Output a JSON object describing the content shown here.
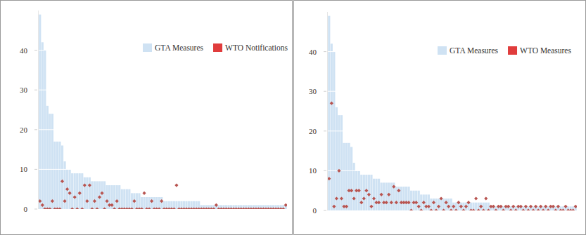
{
  "chart_data": [
    {
      "type": "bar",
      "categories": [
        null,
        null,
        null,
        null,
        null,
        null,
        null,
        null,
        null,
        null,
        null,
        null,
        null,
        null,
        null,
        null,
        null,
        null,
        null,
        null,
        null,
        null,
        null,
        null,
        null,
        null,
        null,
        null,
        null,
        null,
        null,
        null,
        null,
        null,
        null,
        null,
        null,
        null,
        null,
        null,
        null,
        null,
        null,
        null,
        null,
        null,
        null,
        null,
        null,
        null,
        null,
        null,
        null,
        null,
        null,
        null,
        null,
        null,
        null,
        null,
        null,
        null,
        null,
        null,
        null,
        null,
        null,
        null,
        null,
        null,
        null,
        null,
        null,
        null,
        null,
        null,
        null,
        null,
        null,
        null,
        null,
        null,
        null,
        null,
        null,
        null,
        null,
        null,
        null,
        null,
        null,
        null,
        null,
        null,
        null,
        null,
        null,
        null,
        null,
        null
      ],
      "series": [
        {
          "name": "GTA Measures",
          "type": "bar",
          "color": "#cfe2f3",
          "values": [
            49,
            42,
            40,
            26,
            24,
            24,
            17,
            17,
            17,
            16,
            12,
            10,
            10,
            9,
            9,
            9,
            9,
            9,
            8,
            8,
            8,
            7,
            7,
            7,
            7,
            7,
            7,
            6,
            6,
            6,
            6,
            6,
            6,
            5,
            5,
            5,
            5,
            4,
            4,
            4,
            4,
            3,
            3,
            3,
            3,
            3,
            3,
            3,
            3,
            3,
            2,
            2,
            2,
            2,
            2,
            2,
            2,
            2,
            2,
            2,
            2,
            2,
            2,
            2,
            2,
            1,
            1,
            1,
            1,
            1,
            1,
            1,
            1,
            1,
            1,
            1,
            1,
            1,
            1,
            1,
            1,
            1,
            1,
            1,
            1,
            1,
            1,
            1,
            1,
            1,
            1,
            1,
            1,
            1,
            1,
            1,
            1,
            1,
            1,
            1
          ]
        },
        {
          "name": "WTO Notifications",
          "type": "scatter",
          "marker": "diamond",
          "color": "#b85450",
          "values": [
            2,
            1,
            0,
            0,
            0,
            2,
            0,
            0,
            0,
            7,
            2,
            5,
            4,
            0,
            3,
            0,
            4,
            0,
            6,
            2,
            6,
            0,
            2,
            0,
            3,
            4,
            0,
            2,
            1,
            1,
            0,
            2,
            0,
            0,
            0,
            0,
            0,
            0,
            2,
            0,
            0,
            0,
            4,
            0,
            0,
            2,
            0,
            0,
            0,
            2,
            0,
            0,
            0,
            0,
            0,
            6,
            0,
            0,
            0,
            0,
            0,
            0,
            0,
            0,
            0,
            0,
            0,
            0,
            0,
            0,
            0,
            1,
            0,
            0,
            0,
            0,
            0,
            0,
            0,
            0,
            0,
            0,
            0,
            0,
            0,
            0,
            0,
            0,
            0,
            0,
            0,
            0,
            0,
            0,
            0,
            0,
            0,
            0,
            0,
            1
          ]
        }
      ],
      "ylim": [
        0,
        50
      ],
      "yticks": [
        0,
        10,
        20,
        30,
        40
      ],
      "grid": true,
      "legend": "top-right",
      "tick_labels": "y"
    },
    {
      "type": "bar",
      "categories": [
        null,
        null,
        null,
        null,
        null,
        null,
        null,
        null,
        null,
        null,
        null,
        null,
        null,
        null,
        null,
        null,
        null,
        null,
        null,
        null,
        null,
        null,
        null,
        null,
        null,
        null,
        null,
        null,
        null,
        null,
        null,
        null,
        null,
        null,
        null,
        null,
        null,
        null,
        null,
        null,
        null,
        null,
        null,
        null,
        null,
        null,
        null,
        null,
        null,
        null,
        null,
        null,
        null,
        null,
        null,
        null,
        null,
        null,
        null,
        null,
        null,
        null,
        null,
        null,
        null,
        null,
        null,
        null,
        null,
        null,
        null,
        null,
        null,
        null,
        null,
        null,
        null,
        null,
        null,
        null,
        null,
        null,
        null,
        null,
        null,
        null,
        null,
        null,
        null,
        null,
        null,
        null,
        null,
        null,
        null,
        null,
        null,
        null,
        null,
        null
      ],
      "series": [
        {
          "name": "GTA Measures",
          "type": "bar",
          "color": "#cfe2f3",
          "values": [
            49,
            42,
            40,
            26,
            24,
            24,
            17,
            17,
            17,
            16,
            12,
            10,
            10,
            9,
            9,
            9,
            9,
            9,
            8,
            8,
            8,
            7,
            7,
            7,
            7,
            7,
            7,
            6,
            6,
            6,
            6,
            6,
            6,
            5,
            5,
            5,
            5,
            4,
            4,
            4,
            4,
            3,
            3,
            3,
            3,
            3,
            3,
            3,
            3,
            3,
            2,
            2,
            2,
            2,
            2,
            2,
            2,
            2,
            2,
            2,
            2,
            2,
            2,
            2,
            2,
            1,
            1,
            1,
            1,
            1,
            1,
            1,
            1,
            1,
            1,
            1,
            1,
            1,
            1,
            1,
            1,
            1,
            1,
            1,
            1,
            1,
            1,
            1,
            1,
            1,
            1,
            1,
            1,
            1,
            1,
            1,
            1,
            1,
            1,
            1
          ]
        },
        {
          "name": "WTO Measures",
          "type": "scatter",
          "marker": "diamond",
          "color": "#b85450",
          "values": [
            8,
            27,
            1,
            3,
            10,
            3,
            1,
            1,
            5,
            5,
            3,
            5,
            5,
            2,
            3,
            5,
            4,
            1,
            3,
            2,
            2,
            4,
            2,
            2,
            4,
            2,
            6,
            2,
            5,
            2,
            2,
            2,
            2,
            0,
            2,
            2,
            1,
            0,
            2,
            1,
            1,
            0,
            2,
            0,
            1,
            3,
            0,
            2,
            1,
            0,
            1,
            0,
            2,
            1,
            0,
            1,
            2,
            0,
            0,
            3,
            0,
            1,
            0,
            3,
            0,
            1,
            1,
            0,
            1,
            1,
            0,
            1,
            1,
            0,
            1,
            0,
            1,
            1,
            0,
            1,
            0,
            1,
            0,
            1,
            0,
            1,
            0,
            1,
            0,
            1,
            1,
            0,
            1,
            0,
            0,
            1,
            0,
            0,
            0,
            1
          ]
        }
      ],
      "ylim": [
        0,
        50
      ],
      "yticks": [
        0,
        10,
        20,
        30,
        40
      ],
      "grid": true,
      "legend": "top-right",
      "tick_labels": "y"
    }
  ]
}
